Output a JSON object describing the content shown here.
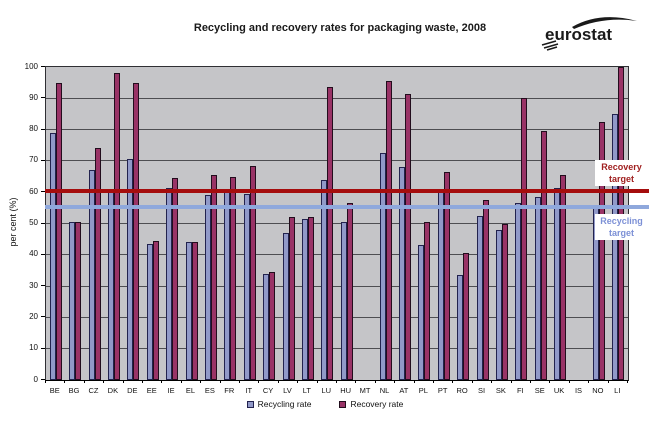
{
  "page": {
    "logo_text": "eurostat"
  },
  "chart_data": {
    "type": "bar",
    "title": "Recycling and recovery rates for packaging waste, 2008",
    "xlabel": "",
    "ylabel": "per cent (%)",
    "ylim": [
      0,
      100
    ],
    "ytick_step": 10,
    "grid": true,
    "legend_position": "bottom",
    "plot_background": "#c5c5c8",
    "categories": [
      "BE",
      "BG",
      "CZ",
      "DK",
      "DE",
      "EE",
      "IE",
      "EL",
      "ES",
      "FR",
      "IT",
      "CY",
      "LV",
      "LT",
      "LU",
      "HU",
      "MT",
      "NL",
      "AT",
      "PL",
      "PT",
      "RO",
      "SI",
      "SK",
      "FI",
      "SE",
      "UK",
      "IS",
      "NO",
      "LI"
    ],
    "series": [
      {
        "name": "Recycling rate",
        "color": "#9199c8",
        "border": "#22224e",
        "values": [
          79,
          50.5,
          67,
          60,
          70.5,
          43.5,
          61.5,
          44,
          59,
          60,
          59.5,
          34,
          47,
          51.5,
          64,
          50.5,
          null,
          72.5,
          68,
          43,
          61,
          33.5,
          52.5,
          48,
          56.5,
          58.5,
          61.5,
          null,
          55,
          85
        ]
      },
      {
        "name": "Recovery rate",
        "color": "#993366",
        "border": "#220d1d",
        "values": [
          95,
          50.5,
          74,
          98,
          95,
          44.5,
          64.5,
          44,
          65.5,
          65,
          68.5,
          34.5,
          52,
          52,
          93.5,
          56.5,
          null,
          95.5,
          91.5,
          50.5,
          66.5,
          40.5,
          57.5,
          50,
          90,
          79.5,
          65.5,
          null,
          82.5,
          100
        ]
      }
    ],
    "reference_lines": [
      {
        "label": "Recovery target",
        "value": 60,
        "color": "#a50d0d",
        "label_color": "#a02020",
        "label_position": "above"
      },
      {
        "label": "Recycling target",
        "value": 55,
        "color": "#8fa8dc",
        "label_color": "#7c90d6",
        "label_position": "below"
      }
    ]
  }
}
